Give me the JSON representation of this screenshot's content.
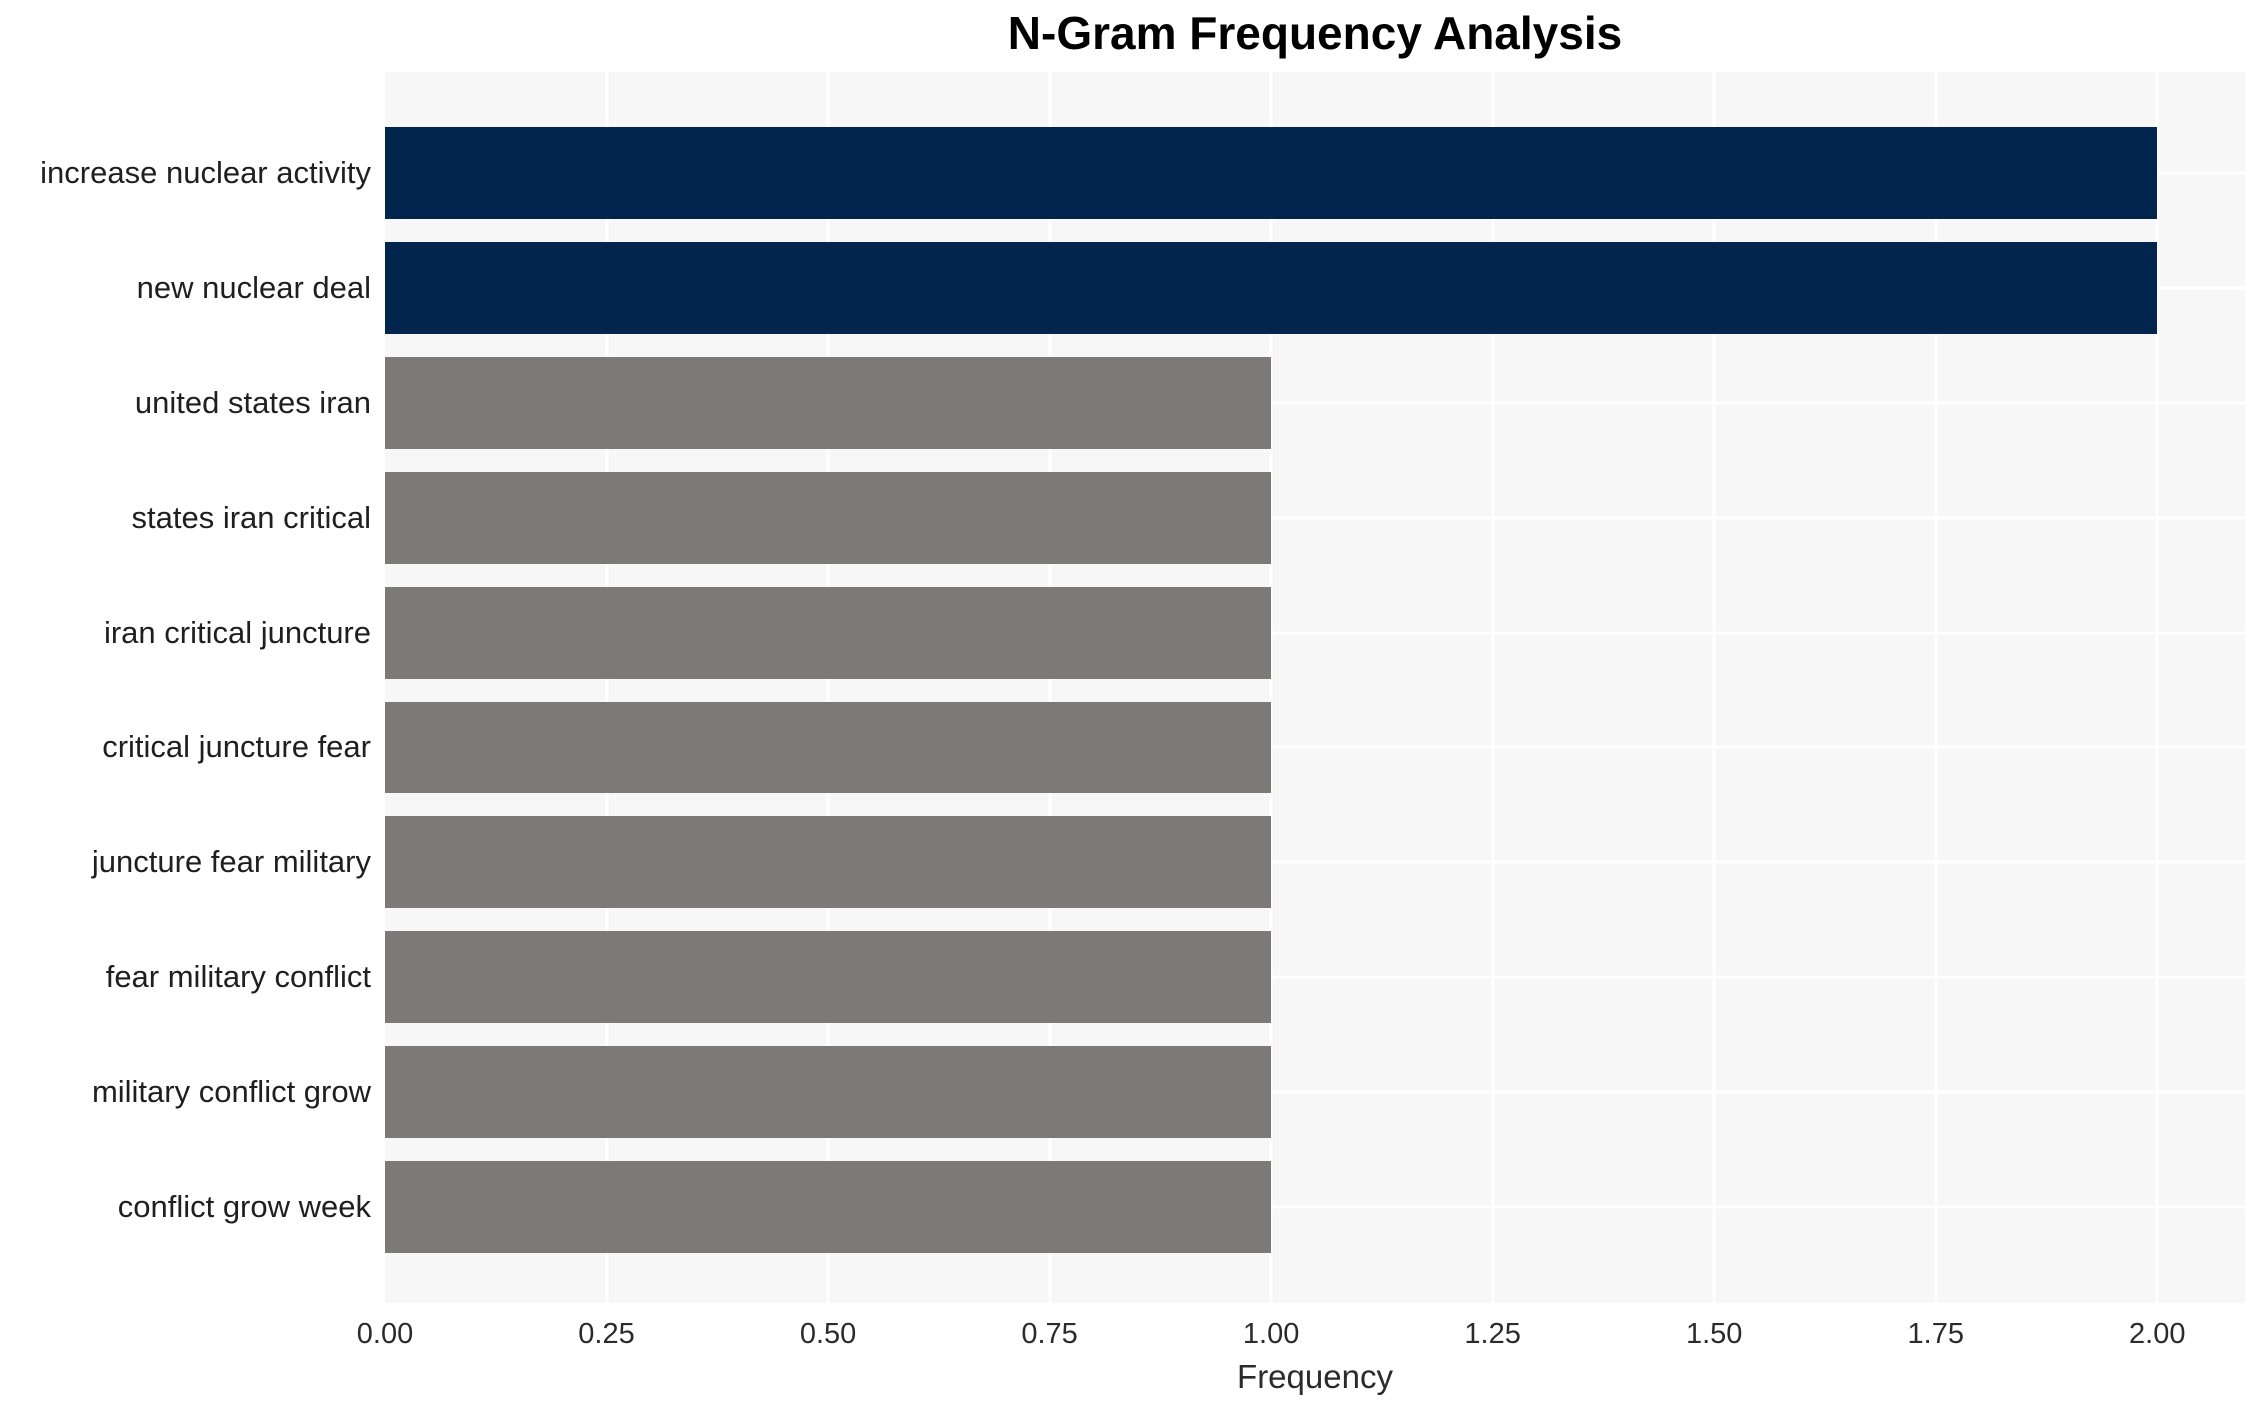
{
  "title": "N-Gram Frequency Analysis",
  "chart_data": {
    "type": "bar",
    "orientation": "horizontal",
    "title": "N-Gram Frequency Analysis",
    "xlabel": "Frequency",
    "ylabel": "",
    "categories": [
      "increase nuclear activity",
      "new nuclear deal",
      "united states iran",
      "states iran critical",
      "iran critical juncture",
      "critical juncture fear",
      "juncture fear military",
      "fear military conflict",
      "military conflict grow",
      "conflict grow week"
    ],
    "values": [
      2,
      2,
      1,
      1,
      1,
      1,
      1,
      1,
      1,
      1
    ],
    "bar_colors": [
      "#02254e",
      "#02254e",
      "#7b7a77",
      "#7b7a77",
      "#7b7a77",
      "#7b7a77",
      "#7b7a77",
      "#7b7a77",
      "#7b7a77",
      "#7b7a77"
    ],
    "xlim": [
      0,
      2.099
    ],
    "xticks": [
      0.0,
      0.25,
      0.5,
      0.75,
      1.0,
      1.25,
      1.5,
      1.75,
      2.0
    ],
    "xtick_labels": [
      "0.00",
      "0.25",
      "0.50",
      "0.75",
      "1.00",
      "1.25",
      "1.50",
      "1.75",
      "2.00"
    ],
    "grid": true,
    "grid_color": "#ffffff",
    "plot_bg_color": "#f7f7f7",
    "highlight_color": "#02254e",
    "default_bar_color": "#7b7a77",
    "legend": false
  }
}
